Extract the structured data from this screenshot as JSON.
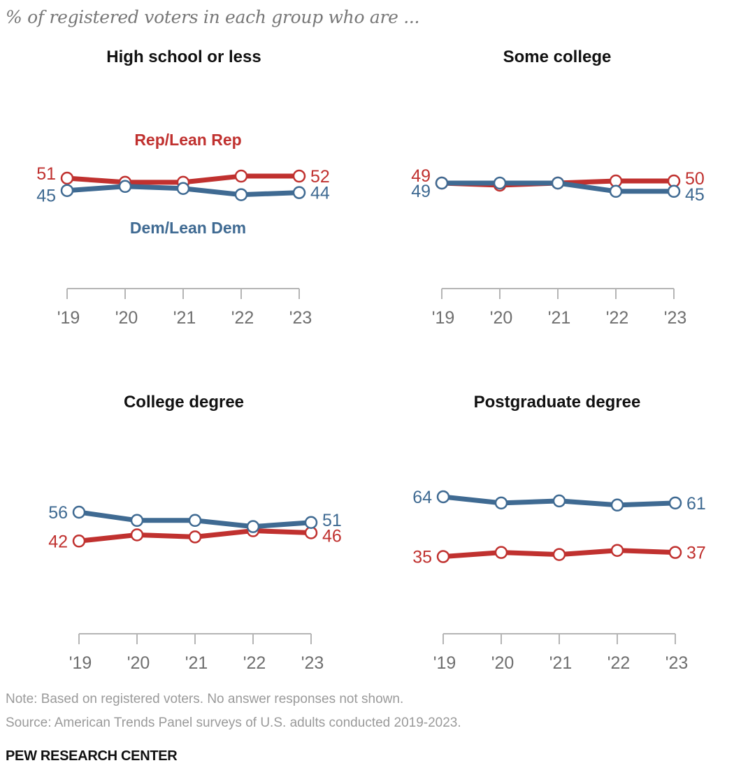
{
  "colors": {
    "rep": "#c0312f",
    "dem": "#3f6a92",
    "axis": "#b5b5b5"
  },
  "footer": {
    "note": "Note: Based on registered voters. No answer responses not shown.",
    "source": "Source: American Trends Panel surveys of U.S. adults conducted 2019-2023.",
    "brand": "PEW RESEARCH CENTER"
  },
  "chart_data": {
    "type": "line",
    "subtitle": "% of registered voters in each group who are ...",
    "x": [
      "'19",
      "'20",
      "'21",
      "'22",
      "'23"
    ],
    "legend": [
      {
        "name": "Rep/Lean Rep",
        "placement": "above lines, first panel"
      },
      {
        "name": "Dem/Lean Dem",
        "placement": "below lines, first panel"
      }
    ],
    "ylabel": "% of registered voters",
    "grid": false,
    "panels": [
      {
        "title": "High school or less",
        "series": [
          {
            "name": "Rep/Lean Rep",
            "values": [
              51,
              49,
              49,
              52,
              52
            ],
            "labels": {
              "start": "51",
              "end": "52"
            }
          },
          {
            "name": "Dem/Lean Dem",
            "values": [
              45,
              47,
              46,
              43,
              44
            ],
            "labels": {
              "start": "45",
              "end": "44"
            }
          }
        ]
      },
      {
        "title": "Some college",
        "series": [
          {
            "name": "Rep/Lean Rep",
            "values": [
              49,
              48,
              49,
              50,
              50
            ],
            "labels": {
              "start": "49",
              "end": "50"
            }
          },
          {
            "name": "Dem/Lean Dem",
            "values": [
              49,
              49,
              49,
              45,
              45
            ],
            "labels": {
              "start": "49",
              "end": "45"
            }
          }
        ]
      },
      {
        "title": "College degree",
        "series": [
          {
            "name": "Rep/Lean Rep",
            "values": [
              42,
              45,
              44,
              47,
              46
            ],
            "labels": {
              "start": "42",
              "end": "46"
            }
          },
          {
            "name": "Dem/Lean Dem",
            "values": [
              56,
              52,
              52,
              49,
              51
            ],
            "labels": {
              "start": "56",
              "end": "51"
            }
          }
        ]
      },
      {
        "title": "Postgraduate degree",
        "series": [
          {
            "name": "Rep/Lean Rep",
            "values": [
              35,
              37,
              36,
              38,
              37
            ],
            "labels": {
              "start": "35",
              "end": "37"
            }
          },
          {
            "name": "Dem/Lean Dem",
            "values": [
              64,
              61,
              62,
              60,
              61
            ],
            "labels": {
              "start": "64",
              "end": "61"
            }
          }
        ]
      }
    ]
  }
}
